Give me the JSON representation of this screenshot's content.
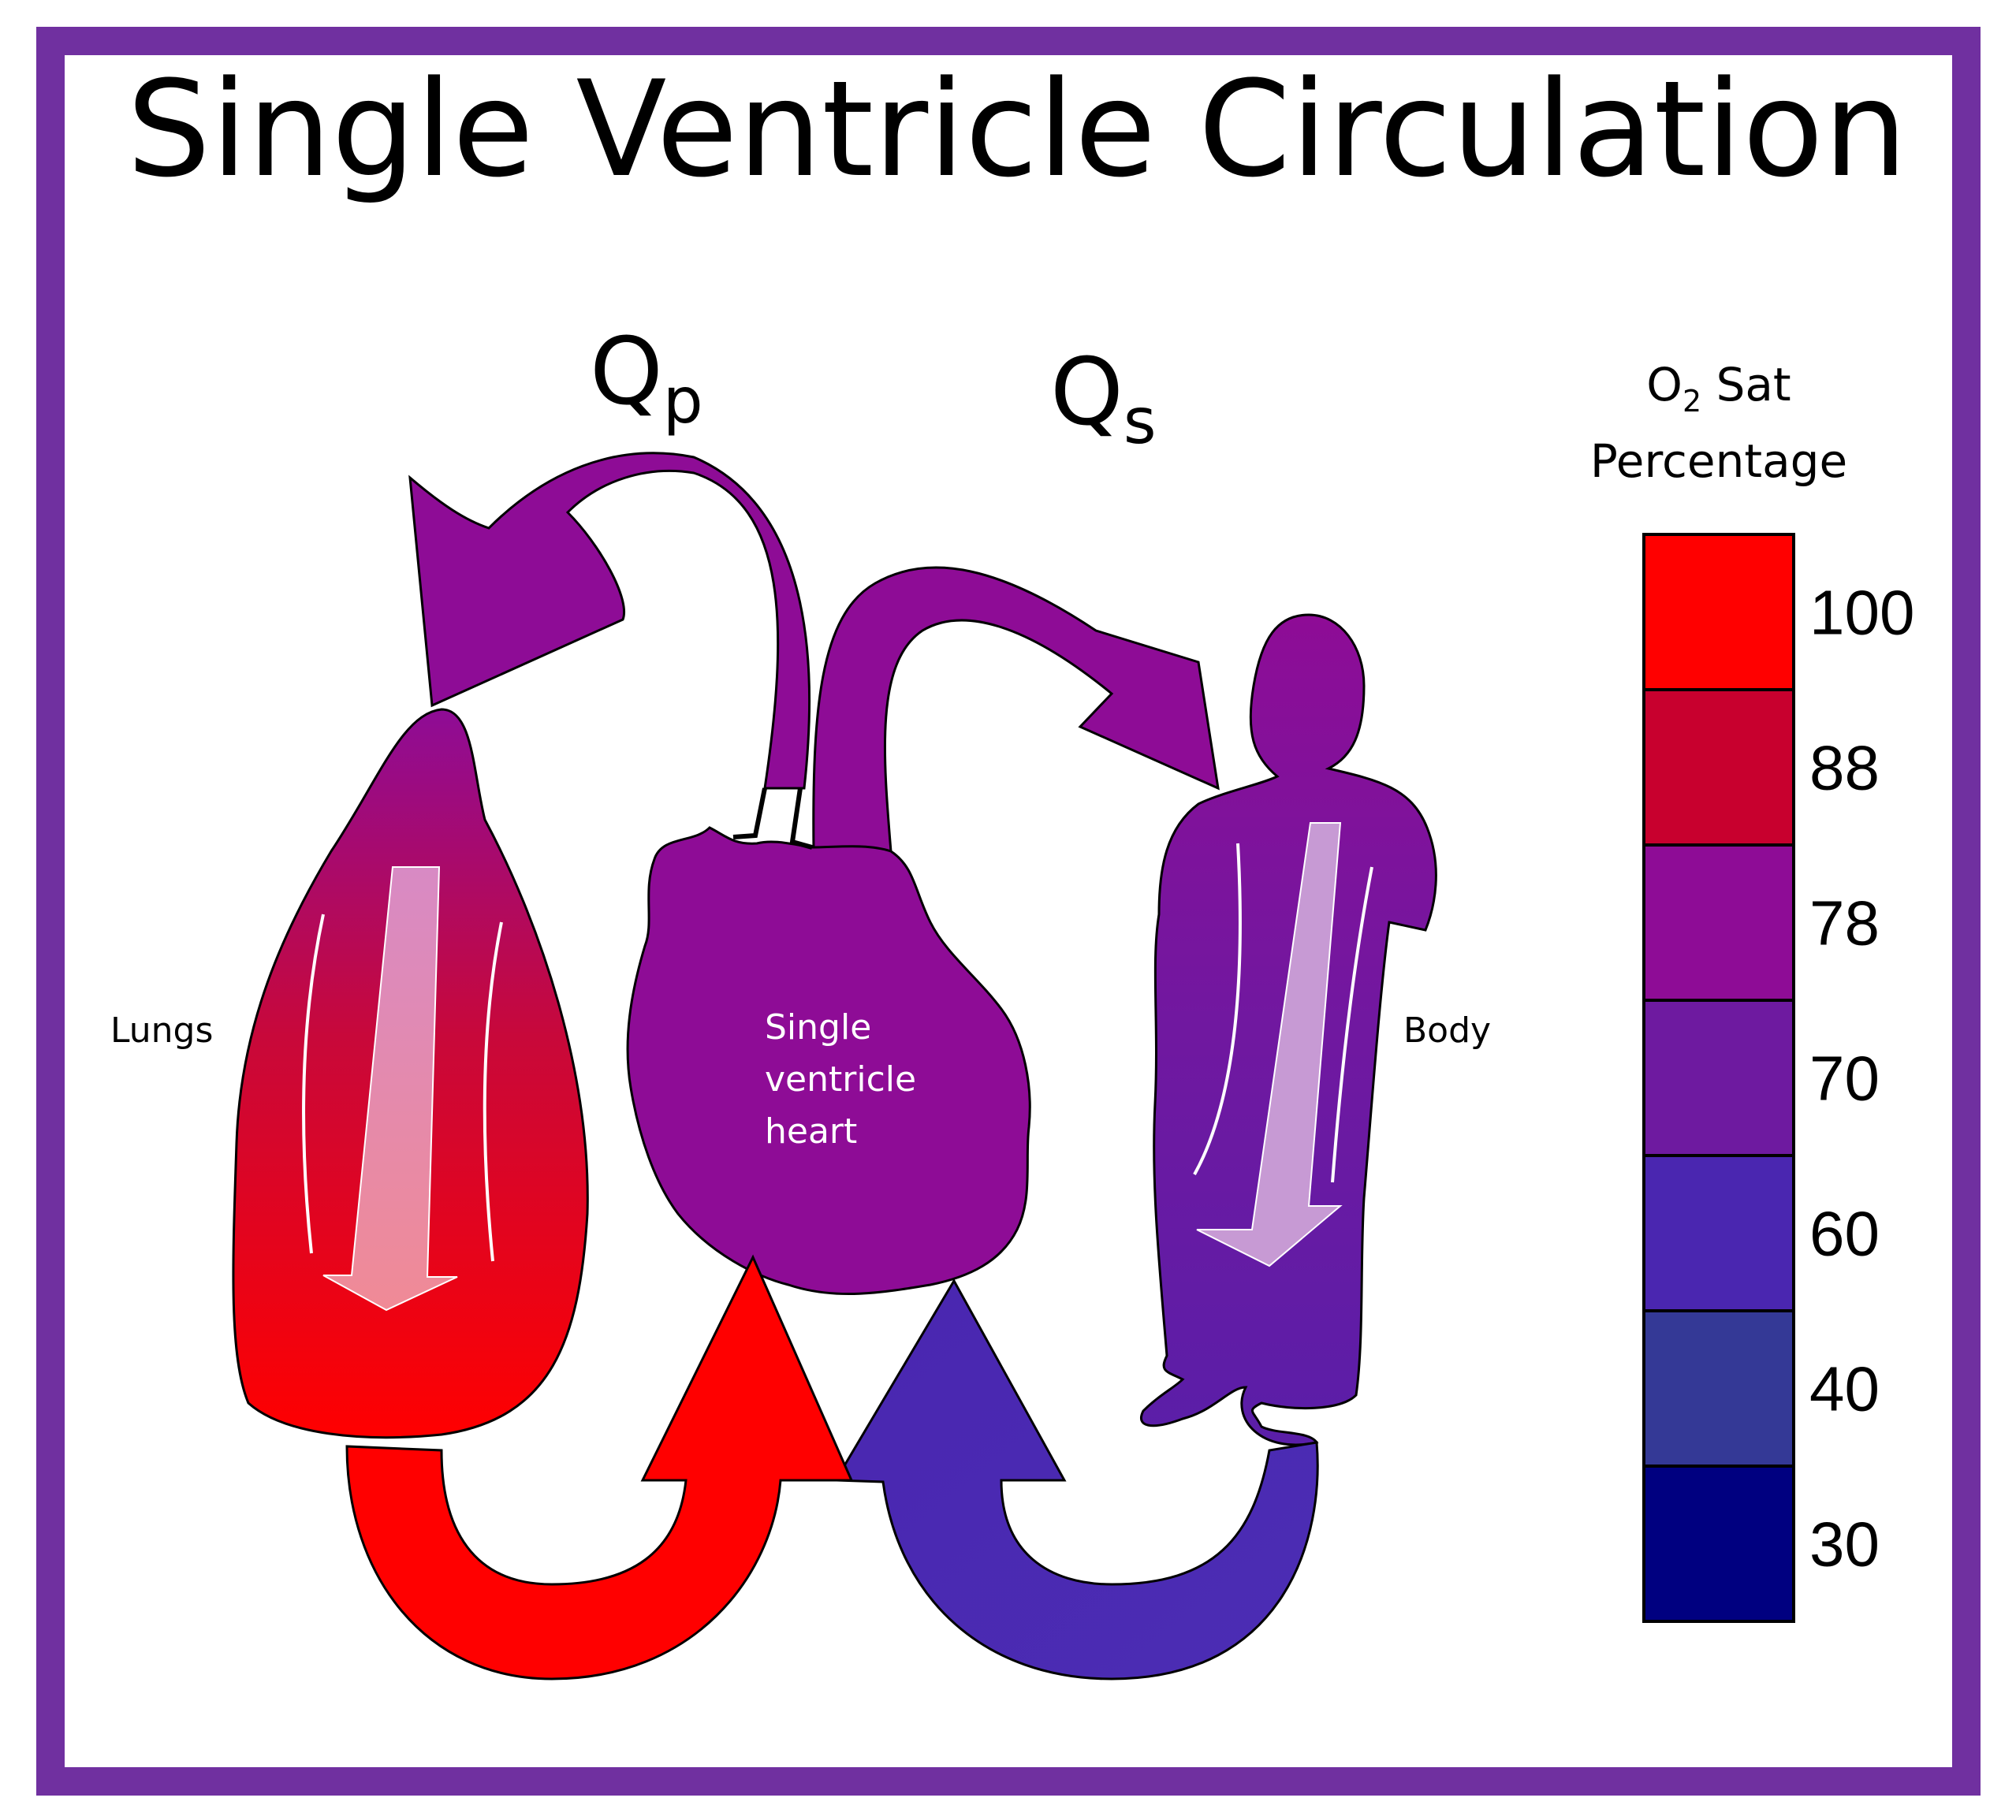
{
  "title": "Single Ventricle Circulation",
  "flows": {
    "pulmonary": {
      "main": "Q",
      "sub": "p"
    },
    "systemic": {
      "main": "Q",
      "sub": "s"
    }
  },
  "labels": {
    "lungs": "Lungs",
    "body": "Body",
    "heart": [
      "Single",
      "ventricle",
      "heart"
    ]
  },
  "legend": {
    "title_line1_pre": "O",
    "title_line1_sub": "2",
    "title_line1_post": " Sat",
    "title_line2": "Percentage",
    "levels": [
      {
        "value": "100",
        "color": "#ff0000"
      },
      {
        "value": "88",
        "color": "#c8002e"
      },
      {
        "value": "78",
        "color": "#8e0c96"
      },
      {
        "value": "70",
        "color": "#6e1aa0"
      },
      {
        "value": "60",
        "color": "#4a26b0"
      },
      {
        "value": "40",
        "color": "#343996"
      },
      {
        "value": "30",
        "color": "#000080"
      }
    ]
  },
  "colors": {
    "frame": "#7030a0",
    "ventricle_outflow": "#8e0c96",
    "body": "#6e1aa0",
    "systemic_return": "#4a26b0",
    "pulmonary_return": "#ff0000"
  }
}
